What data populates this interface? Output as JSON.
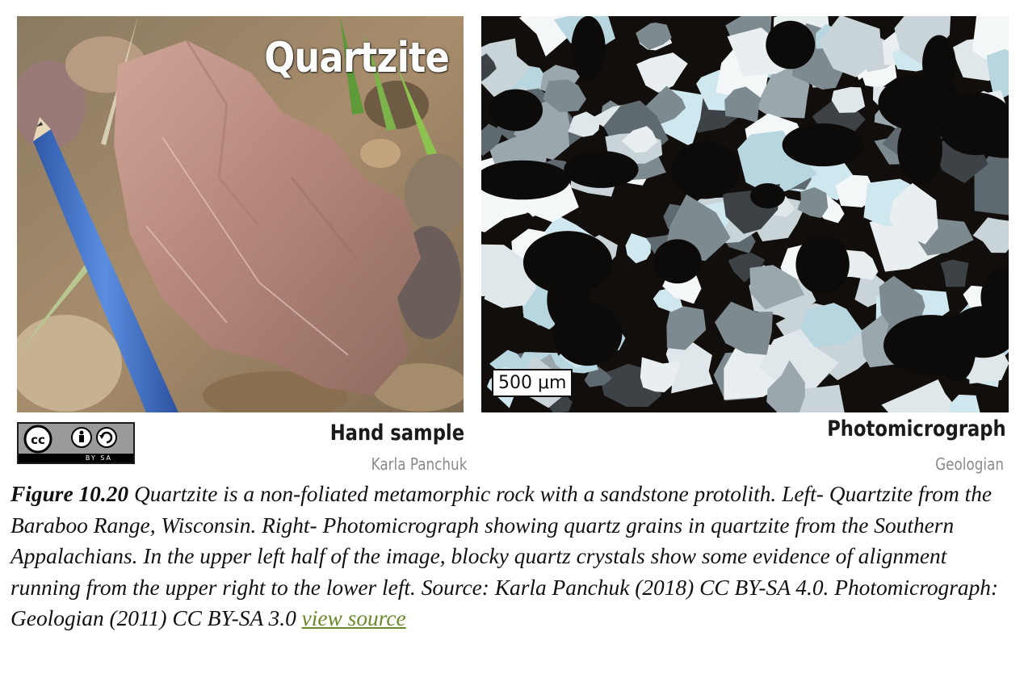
{
  "figure": {
    "left_image": {
      "overlay_title": "Quartzite",
      "label": "Hand sample",
      "credit": "Karla Panchuk"
    },
    "right_image": {
      "scale_bar": "500 μm",
      "label": "Photomicrograph",
      "credit": "Geologian"
    },
    "license_badge": {
      "icon": "cc-by-sa-icon",
      "text": "BY   SA"
    },
    "caption": {
      "label": "Figure 10.20",
      "text": " Quartzite is a non-foliated metamorphic rock with a sandstone protolith. Left- Quartzite from the Baraboo Range, Wisconsin. Right- Photomicrograph showing quartz grains in quartzite from the Southern Appalachians. In the upper left half of the image, blocky quartz crystals show some evidence of alignment running from the upper right to the lower left. Source: Karla Panchuk (2018) CC BY-SA 4.0. Photomicrograph: Geologian (2011) CC BY-SA 3.0 ",
      "link_text": "view source"
    }
  },
  "colors": {
    "link": "#6a8a2a",
    "rock": "#b88a7e",
    "pencil": "#3f6fc4"
  }
}
